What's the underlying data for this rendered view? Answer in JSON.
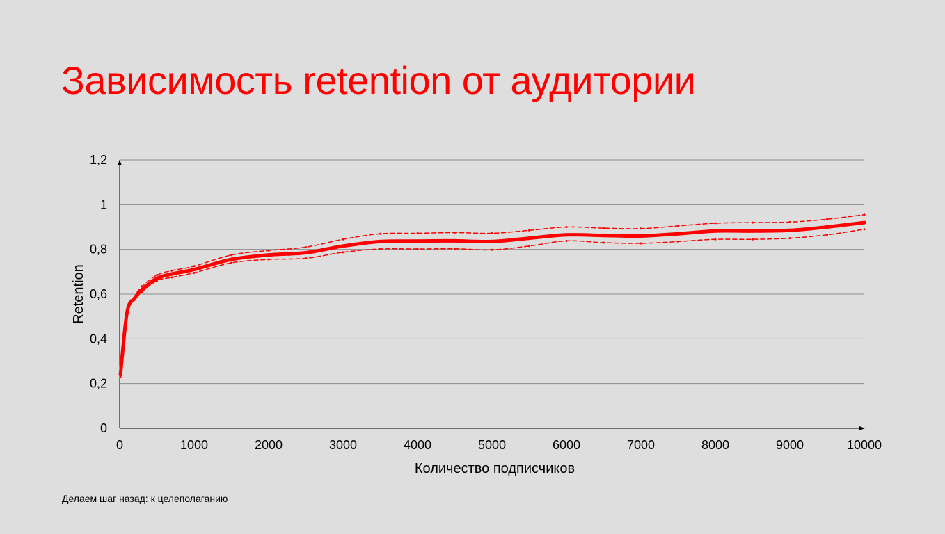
{
  "slide": {
    "title": "Зависимость retention от аудитории",
    "footer": "Делаем шаг назад: к целеполаганию"
  },
  "colors": {
    "background": "#dedede",
    "accent": "#ff0000",
    "grid": "#8c8c8c",
    "axis": "#000000"
  },
  "chart_data": {
    "type": "line",
    "xlabel": "Количество подписчиков",
    "ylabel": "Retention",
    "xlim": [
      0,
      10000
    ],
    "ylim": [
      0,
      1.2
    ],
    "x_ticks": [
      0,
      1000,
      2000,
      3000,
      4000,
      5000,
      6000,
      7000,
      8000,
      9000,
      10000
    ],
    "x_tick_labels": [
      "0",
      "1000",
      "2000",
      "3000",
      "4000",
      "5000",
      "6000",
      "7000",
      "8000",
      "9000",
      "10000"
    ],
    "y_ticks": [
      0,
      0.2,
      0.4,
      0.6,
      0.8,
      1,
      1.2
    ],
    "y_tick_labels": [
      "0",
      "0,2",
      "0,4",
      "0,6",
      "0,8",
      "1",
      "1,2"
    ],
    "grid": "horizontal",
    "legend": "none",
    "series": [
      {
        "style": "solid",
        "x": [
          10,
          100,
          200,
          300,
          500,
          700,
          1000,
          1500,
          2000,
          2500,
          3000,
          3500,
          4000,
          4500,
          5000,
          5500,
          6000,
          6500,
          7000,
          7500,
          8000,
          8500,
          9000,
          9500,
          10000
        ],
        "y": [
          0.24,
          0.52,
          0.58,
          0.62,
          0.67,
          0.69,
          0.71,
          0.755,
          0.775,
          0.785,
          0.815,
          0.835,
          0.837,
          0.838,
          0.835,
          0.85,
          0.865,
          0.862,
          0.86,
          0.87,
          0.882,
          0.882,
          0.885,
          0.9,
          0.92
        ]
      },
      {
        "style": "dashed",
        "x": [
          10,
          100,
          200,
          300,
          500,
          700,
          1000,
          1500,
          2000,
          2500,
          3000,
          3500,
          4000,
          4500,
          5000,
          5500,
          6000,
          6500,
          7000,
          7500,
          8000,
          8500,
          9000,
          9500,
          10000
        ],
        "y": [
          0.25,
          0.53,
          0.59,
          0.635,
          0.685,
          0.705,
          0.725,
          0.775,
          0.795,
          0.81,
          0.845,
          0.87,
          0.872,
          0.875,
          0.872,
          0.885,
          0.9,
          0.895,
          0.893,
          0.905,
          0.917,
          0.92,
          0.922,
          0.935,
          0.955
        ]
      },
      {
        "style": "dashed",
        "x": [
          10,
          100,
          200,
          300,
          500,
          700,
          1000,
          1500,
          2000,
          2500,
          3000,
          3500,
          4000,
          4500,
          5000,
          5500,
          6000,
          6500,
          7000,
          7500,
          8000,
          8500,
          9000,
          9500,
          10000
        ],
        "y": [
          0.23,
          0.51,
          0.575,
          0.61,
          0.66,
          0.675,
          0.695,
          0.74,
          0.755,
          0.76,
          0.787,
          0.802,
          0.802,
          0.803,
          0.798,
          0.815,
          0.838,
          0.83,
          0.827,
          0.835,
          0.845,
          0.845,
          0.85,
          0.865,
          0.89
        ]
      }
    ]
  }
}
